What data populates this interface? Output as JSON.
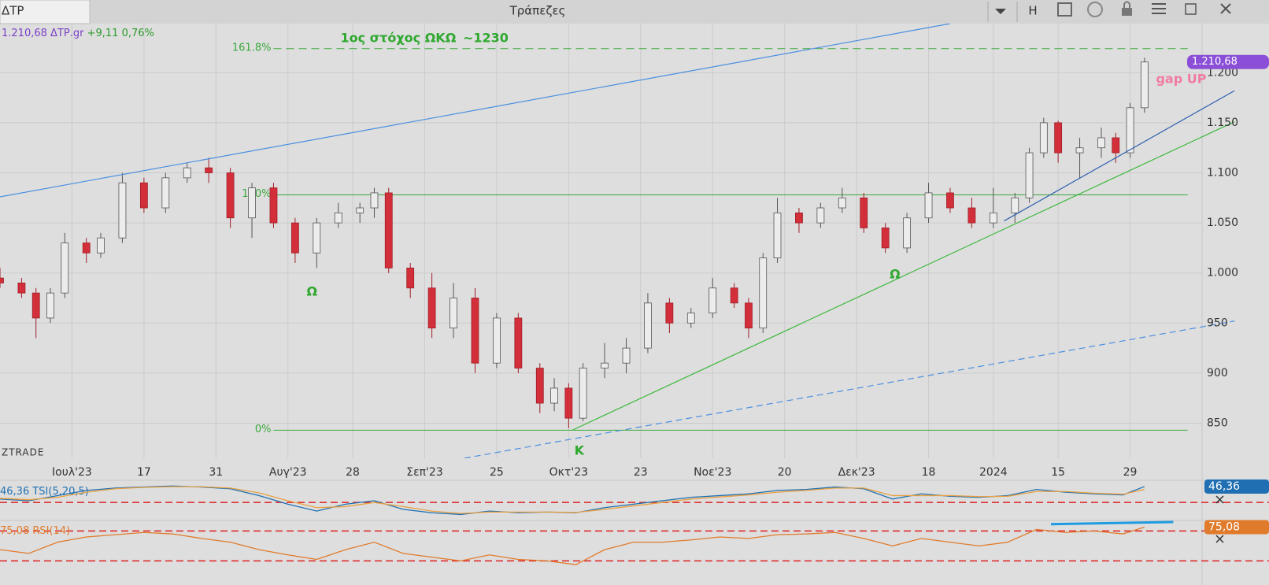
{
  "toolbar": {
    "symbol": "ΔΤΡ",
    "title": "Τράπεζες",
    "button": "H"
  },
  "chart_data": [
    {
      "type": "candlestick",
      "info": {
        "symbol": "ΔΤΡ.gr",
        "change": "+9,11",
        "change_pct": "0,76%"
      },
      "watermark": "ZTRADE",
      "x": [
        0,
        3,
        5,
        7,
        9,
        12,
        14,
        17,
        20,
        23,
        26,
        29,
        32,
        35,
        38,
        41,
        44,
        47,
        50,
        52,
        54,
        57,
        60,
        63,
        66,
        69,
        72,
        75,
        77,
        79,
        81,
        84,
        87,
        90,
        93,
        96,
        99,
        102,
        104,
        106,
        108,
        111,
        114,
        117,
        120,
        123,
        126,
        129,
        132,
        135,
        138,
        141,
        143,
        145,
        147,
        150,
        153,
        155,
        157,
        159
      ],
      "open": [
        995,
        990,
        980,
        955,
        980,
        1030,
        1020,
        1035,
        1090,
        1065,
        1095,
        1105,
        1100,
        1055,
        1085,
        1050,
        1020,
        1050,
        1060,
        1065,
        1080,
        1005,
        985,
        945,
        975,
        910,
        955,
        905,
        870,
        885,
        855,
        905,
        910,
        925,
        970,
        950,
        960,
        985,
        970,
        945,
        1015,
        1060,
        1050,
        1065,
        1075,
        1045,
        1025,
        1055,
        1080,
        1065,
        1050,
        1060,
        1075,
        1120,
        1150,
        1120,
        1125,
        1135,
        1120,
        1165
      ],
      "high": [
        1005,
        995,
        985,
        985,
        1040,
        1035,
        1040,
        1100,
        1095,
        1100,
        1110,
        1115,
        1105,
        1090,
        1090,
        1055,
        1055,
        1070,
        1070,
        1085,
        1085,
        1010,
        1000,
        990,
        985,
        960,
        960,
        910,
        895,
        890,
        910,
        930,
        935,
        980,
        975,
        965,
        995,
        990,
        975,
        1020,
        1075,
        1065,
        1070,
        1085,
        1080,
        1050,
        1060,
        1090,
        1085,
        1075,
        1085,
        1080,
        1125,
        1155,
        1152,
        1135,
        1145,
        1140,
        1170,
        1215
      ],
      "low": [
        985,
        975,
        935,
        950,
        975,
        1010,
        1015,
        1030,
        1060,
        1060,
        1090,
        1090,
        1045,
        1035,
        1045,
        1010,
        1005,
        1045,
        1050,
        1055,
        1000,
        975,
        935,
        935,
        900,
        905,
        900,
        860,
        862,
        845,
        852,
        895,
        900,
        920,
        940,
        945,
        955,
        965,
        935,
        940,
        1010,
        1040,
        1045,
        1060,
        1040,
        1020,
        1020,
        1050,
        1060,
        1045,
        1045,
        1050,
        1070,
        1115,
        1110,
        1095,
        1115,
        1110,
        1115,
        1160
      ],
      "close": [
        990,
        980,
        955,
        980,
        1030,
        1020,
        1035,
        1090,
        1065,
        1095,
        1105,
        1100,
        1055,
        1085,
        1050,
        1020,
        1050,
        1060,
        1065,
        1080,
        1005,
        985,
        945,
        975,
        910,
        955,
        905,
        870,
        885,
        855,
        905,
        910,
        925,
        970,
        950,
        960,
        985,
        970,
        945,
        1015,
        1060,
        1050,
        1065,
        1075,
        1045,
        1025,
        1055,
        1080,
        1065,
        1050,
        1060,
        1075,
        1120,
        1150,
        1120,
        1125,
        1135,
        1120,
        1165,
        1210.68
      ],
      "close_label": "1.210,68",
      "up_color": "#ececec",
      "down_color": "#d32f3a",
      "xlim": [
        0,
        167
      ],
      "xticks": [
        {
          "value": 10,
          "label": "Ιουλ'23"
        },
        {
          "value": 20,
          "label": "17"
        },
        {
          "value": 30,
          "label": "31"
        },
        {
          "value": 40,
          "label": "Αυγ'23"
        },
        {
          "value": 49,
          "label": "28"
        },
        {
          "value": 59,
          "label": "Σεπ'23"
        },
        {
          "value": 69,
          "label": "25"
        },
        {
          "value": 79,
          "label": "Οκτ'23"
        },
        {
          "value": 89,
          "label": "23"
        },
        {
          "value": 99,
          "label": "Νοε'23"
        },
        {
          "value": 109,
          "label": "20"
        },
        {
          "value": 119,
          "label": "Δεκ'23"
        },
        {
          "value": 129,
          "label": "18"
        },
        {
          "value": 138,
          "label": "2024"
        },
        {
          "value": 147,
          "label": "15"
        },
        {
          "value": 157,
          "label": "29"
        }
      ],
      "ylim": [
        815,
        1249
      ],
      "yticks": [
        850,
        900,
        950,
        {
          "value": 1000,
          "label": "1.000"
        },
        {
          "value": 1050,
          "label": "1.050"
        },
        {
          "value": 1100,
          "label": "1.100"
        },
        {
          "value": 1150,
          "label": "1.150"
        },
        {
          "value": 1200,
          "label": "1.200"
        }
      ],
      "grid": true,
      "levels": [
        {
          "label": "161.8%",
          "value": 1224,
          "x": [
            38,
            165
          ],
          "color": "#3aa83a",
          "dashed": true
        },
        {
          "label": "100%",
          "value": 1078,
          "x": [
            38,
            165
          ],
          "color": "#3aa83a",
          "dashed": false
        },
        {
          "label": "0%",
          "value": 843,
          "x": [
            38,
            165
          ],
          "color": "#3aa83a",
          "dashed": false
        }
      ],
      "trendlines": [
        {
          "x": [
            0,
            132
          ],
          "y": [
            1076,
            1249
          ],
          "color": "#4a8fe0",
          "dashed": false
        },
        {
          "x": [
            79.5,
            171.5
          ],
          "y": [
            843,
            1151
          ],
          "color": "#3db83d",
          "dashed": false
        },
        {
          "x": [
            64.5,
            171.5
          ],
          "y": [
            815,
            952
          ],
          "color": "#4a8fe0",
          "dashed": true
        },
        {
          "x": [
            139.5,
            171.5
          ],
          "y": [
            1052,
            1182
          ],
          "color": "#2f5fb0",
          "dashed": false
        }
      ],
      "annotations": [
        {
          "text": "1ος στόχος ΩΚΩ",
          "x": 47.3,
          "y": 1234,
          "color": "#2fa82f"
        },
        {
          "text": "~1230",
          "x": 64.3,
          "y": 1234,
          "color": "#2fa82f"
        },
        {
          "text": "Ω",
          "x": 42.6,
          "y": 981,
          "color": "#2fa82f"
        },
        {
          "text": "Ω",
          "x": 123.6,
          "y": 998,
          "color": "#2fa82f"
        },
        {
          "text": "K",
          "x": 79.8,
          "y": 822,
          "color": "#2fa82f"
        },
        {
          "text": "gap UP",
          "x": 160.6,
          "y": 1193,
          "color": "#f07ca0"
        }
      ]
    },
    {
      "type": "line",
      "xlim": [
        0,
        167
      ],
      "ylim": [
        -50,
        60
      ],
      "hlines": [
        0
      ],
      "series": [
        {
          "name": "TSI(5,20,5)",
          "color": "#1f6fb2",
          "x": [
            0,
            4,
            8,
            12,
            16,
            20,
            24,
            28,
            32,
            36,
            40,
            44,
            48,
            52,
            56,
            60,
            64,
            68,
            72,
            76,
            80,
            84,
            88,
            92,
            96,
            100,
            104,
            108,
            112,
            116,
            120,
            124,
            128,
            132,
            136,
            140,
            144,
            148,
            152,
            156,
            159
          ],
          "values": [
            10,
            5,
            20,
            35,
            42,
            45,
            48,
            45,
            40,
            20,
            -5,
            -25,
            -5,
            5,
            -20,
            -30,
            -35,
            -25,
            -30,
            -28,
            -30,
            -15,
            -5,
            5,
            15,
            20,
            25,
            35,
            38,
            45,
            40,
            10,
            25,
            18,
            15,
            20,
            38,
            30,
            25,
            22,
            46.36
          ],
          "last_label": "46,36"
        },
        {
          "color": "#e8a040",
          "x": [
            0,
            4,
            8,
            12,
            16,
            20,
            24,
            28,
            32,
            36,
            40,
            44,
            48,
            52,
            56,
            60,
            64,
            68,
            72,
            76,
            80,
            84,
            88,
            92,
            96,
            100,
            104,
            108,
            112,
            116,
            120,
            124,
            128,
            132,
            136,
            140,
            144,
            148,
            152,
            156,
            159
          ],
          "values": [
            12,
            8,
            15,
            30,
            40,
            44,
            46,
            46,
            42,
            28,
            5,
            -15,
            -12,
            0,
            -12,
            -25,
            -32,
            -28,
            -28,
            -28,
            -29,
            -20,
            -10,
            0,
            10,
            16,
            22,
            30,
            35,
            42,
            42,
            20,
            20,
            20,
            17,
            18,
            32,
            32,
            27,
            24,
            38
          ]
        }
      ]
    },
    {
      "type": "line",
      "xlim": [
        0,
        167
      ],
      "ylim": [
        22,
        83
      ],
      "hlines": [
        70,
        30
      ],
      "series": [
        {
          "name": "RSI(14)",
          "color": "#e07b2c",
          "x": [
            0,
            4,
            8,
            12,
            16,
            20,
            24,
            28,
            32,
            36,
            40,
            44,
            48,
            52,
            56,
            60,
            64,
            68,
            72,
            76,
            80,
            84,
            88,
            92,
            96,
            100,
            104,
            108,
            112,
            116,
            120,
            124,
            128,
            132,
            136,
            140,
            144,
            148,
            152,
            156,
            159
          ],
          "values": [
            45,
            40,
            55,
            62,
            65,
            68,
            66,
            60,
            55,
            45,
            38,
            32,
            45,
            55,
            40,
            35,
            30,
            38,
            32,
            30,
            25,
            45,
            55,
            55,
            58,
            62,
            60,
            65,
            66,
            68,
            60,
            50,
            60,
            55,
            50,
            55,
            72,
            68,
            70,
            66,
            75.08
          ],
          "last_label": "75,08"
        },
        {
          "color": "#1e9be0",
          "x": [
            146,
            163
          ],
          "values": [
            79,
            82
          ]
        }
      ]
    }
  ]
}
